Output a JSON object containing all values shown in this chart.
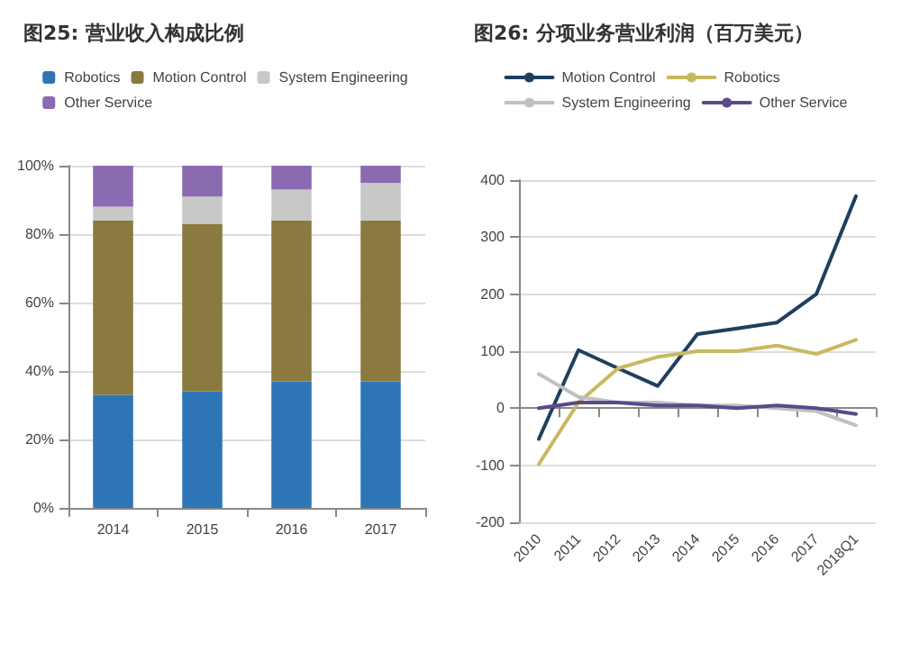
{
  "chart_data": [
    {
      "type": "bar",
      "title": "图25: 营业收入构成比例",
      "categories": [
        "2014",
        "2015",
        "2016",
        "2017"
      ],
      "stacked": true,
      "series": [
        {
          "name": "Robotics",
          "color": "#2e75b6",
          "values": [
            33,
            34,
            37,
            37
          ]
        },
        {
          "name": "Motion Control",
          "color": "#8a7a40",
          "values": [
            51,
            49,
            47,
            47
          ]
        },
        {
          "name": "System Engineering",
          "color": "#c8c8c8",
          "values": [
            4,
            8,
            9,
            11
          ]
        },
        {
          "name": "Other Service",
          "color": "#8a6ab0",
          "values": [
            12,
            9,
            7,
            5
          ]
        }
      ],
      "ylim": [
        0,
        100
      ],
      "yticks": [
        {
          "value": 0,
          "label": "0%"
        },
        {
          "value": 20,
          "label": "20%"
        },
        {
          "value": 40,
          "label": "40%"
        },
        {
          "value": 60,
          "label": "60%"
        },
        {
          "value": 80,
          "label": "80%"
        },
        {
          "value": 100,
          "label": "100%"
        }
      ],
      "grid": "y",
      "legend": "top"
    },
    {
      "type": "line",
      "title": "图26: 分项业务营业利润（百万美元）",
      "categories": [
        "2010",
        "2011",
        "2012",
        "2013",
        "2014",
        "2015",
        "2016",
        "2017",
        "2018Q1"
      ],
      "series": [
        {
          "name": "Motion Control",
          "color": "#1f3f5f",
          "values": [
            -54,
            102,
            70,
            39,
            130,
            140,
            150,
            200,
            372
          ]
        },
        {
          "name": "Robotics",
          "color": "#c8b860",
          "values": [
            -98,
            10,
            70,
            90,
            100,
            100,
            110,
            95,
            120
          ]
        },
        {
          "name": "System Engineering",
          "color": "#c0c0c0",
          "values": [
            60,
            20,
            10,
            10,
            5,
            5,
            0,
            -5,
            -30
          ]
        },
        {
          "name": "Other Service",
          "color": "#5a4a8a",
          "values": [
            0,
            10,
            10,
            5,
            5,
            0,
            5,
            0,
            -10
          ]
        }
      ],
      "ylim": [
        -200,
        400
      ],
      "yticks": [
        -200,
        -100,
        0,
        100,
        200,
        300,
        400
      ],
      "grid": "y",
      "legend": "top",
      "marker": "none",
      "line_style": "solid"
    }
  ]
}
